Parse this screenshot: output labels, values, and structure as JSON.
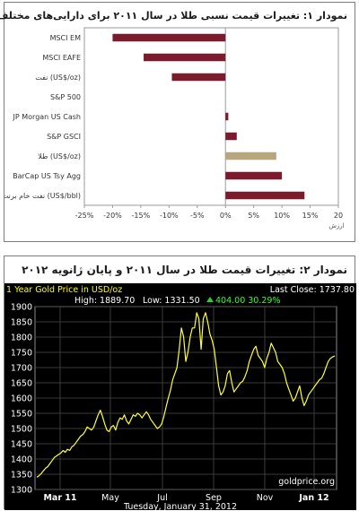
{
  "chart1_title": "نمودار ۱: تغییرات قیمت نسبی طلا در سال ۲۰۱۱ برای دارایی‌های مختلف",
  "chart2_title": "نمودار ۲: تغییرات قیمت طلا در سال ۲۰۱۱ و پایان ژانویه ۲۰۱۲",
  "chart_data": [
    {
      "type": "bar",
      "orientation": "horizontal",
      "categories": [
        "MSCI EM",
        "MSCI EAFE",
        "نفت (US$/oz)",
        "S&P 500",
        "JP Morgan US Cash",
        "S&P GSCI",
        "طلا (US$/oz)",
        "BarCap US Tsy Agg",
        "نفت خام برنت (US$/bbl)"
      ],
      "values": [
        -20,
        -14.5,
        -9.5,
        0,
        0.5,
        2,
        9,
        10,
        14
      ],
      "colors": [
        "#7a1b2e",
        "#7a1b2e",
        "#7a1b2e",
        "#7a1b2e",
        "#7a1b2e",
        "#7a1b2e",
        "#b8a67e",
        "#7a1b2e",
        "#7a1b2e"
      ],
      "xlim": [
        -25,
        20
      ],
      "xticks": [
        "-25%",
        "-20%",
        "-15%",
        "-10%",
        "-5%",
        "0%",
        "5%",
        "10%",
        "15%",
        "20"
      ],
      "xlabel": "ارزش",
      "grid": false
    },
    {
      "type": "line",
      "title": "1 Year Gold Price in USD/oz",
      "last_close": "Last Close: 1737.80",
      "high_text": "High: 1889.70",
      "low_text": "Low: 1331.50",
      "change_text": "404.00 30.29%",
      "source": "goldprice.org",
      "date": "Tuesday, January 31, 2012",
      "ylim": [
        1300,
        1900
      ],
      "yticks": [
        1300,
        1350,
        1400,
        1450,
        1500,
        1550,
        1600,
        1650,
        1700,
        1750,
        1800,
        1850,
        1900
      ],
      "xticks": [
        "Mar 11",
        "May",
        "Jul",
        "Sep",
        "Nov",
        "Jan 12"
      ],
      "series": [
        {
          "color": "#ffff33",
          "values": [
            1340,
            1345,
            1352,
            1361,
            1370,
            1375,
            1385,
            1395,
            1405,
            1410,
            1415,
            1420,
            1428,
            1422,
            1432,
            1428,
            1440,
            1445,
            1455,
            1465,
            1475,
            1480,
            1490,
            1505,
            1500,
            1495,
            1505,
            1525,
            1545,
            1560,
            1540,
            1515,
            1495,
            1490,
            1505,
            1510,
            1495,
            1520,
            1535,
            1530,
            1545,
            1525,
            1515,
            1530,
            1545,
            1540,
            1550,
            1545,
            1535,
            1545,
            1555,
            1545,
            1530,
            1520,
            1510,
            1500,
            1505,
            1515,
            1540,
            1570,
            1600,
            1625,
            1660,
            1680,
            1700,
            1760,
            1830,
            1800,
            1720,
            1750,
            1800,
            1830,
            1830,
            1880,
            1860,
            1760,
            1860,
            1880,
            1850,
            1810,
            1790,
            1760,
            1700,
            1640,
            1610,
            1620,
            1640,
            1680,
            1690,
            1650,
            1620,
            1630,
            1640,
            1650,
            1655,
            1670,
            1690,
            1720,
            1740,
            1760,
            1770,
            1740,
            1730,
            1720,
            1700,
            1730,
            1750,
            1780,
            1765,
            1750,
            1720,
            1710,
            1700,
            1680,
            1650,
            1630,
            1610,
            1590,
            1600,
            1620,
            1640,
            1600,
            1575,
            1590,
            1610,
            1620,
            1630,
            1640,
            1650,
            1660,
            1665,
            1680,
            1700,
            1720,
            1730,
            1735,
            1738
          ]
        }
      ]
    }
  ]
}
